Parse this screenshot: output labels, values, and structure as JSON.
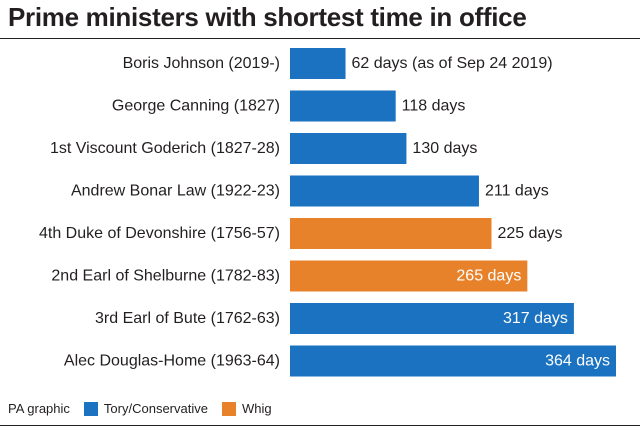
{
  "title": "Prime ministers with shortest time in office",
  "footer": {
    "source": "PA graphic"
  },
  "legend": [
    {
      "name": "Tory/Conservative",
      "color": "#1a72c1"
    },
    {
      "name": "Whig",
      "color": "#e8822a"
    }
  ],
  "chart_data": {
    "type": "bar",
    "orientation": "horizontal",
    "title": "Prime ministers with shortest time in office",
    "categories": [
      "Boris Johnson (2019-)",
      "George Canning (1827)",
      "1st Viscount Goderich (1827-28)",
      "Andrew Bonar Law (1922-23)",
      "4th Duke of Devonshire (1756-57)",
      "2nd Earl of Shelburne (1782-83)",
      "3rd Earl of Bute (1762-63)",
      "Alec Douglas-Home (1963-64)"
    ],
    "values": [
      62,
      118,
      130,
      211,
      225,
      265,
      317,
      364
    ],
    "labels": [
      "62 days (as of Sep 24 2019)",
      "118 days",
      "130 days",
      "211 days",
      "225 days",
      "265 days",
      "317 days",
      "364 days"
    ],
    "party": [
      "Tory/Conservative",
      "Tory/Conservative",
      "Tory/Conservative",
      "Tory/Conservative",
      "Whig",
      "Whig",
      "Tory/Conservative",
      "Tory/Conservative"
    ],
    "xlim": [
      0,
      364
    ],
    "grid": false,
    "legend_position": "bottom-left"
  }
}
